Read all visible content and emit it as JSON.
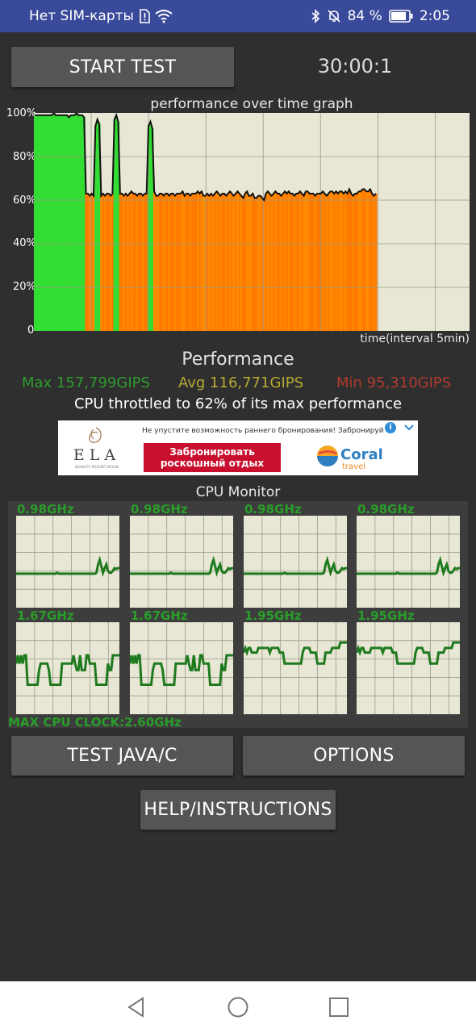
{
  "status_bar": {
    "carrier": "Нет SIM-карты",
    "battery_percent": "84 %",
    "time": "2:05",
    "icons": [
      "sim-alert-icon",
      "wifi-icon",
      "bluetooth-icon",
      "mute-icon",
      "battery-icon"
    ]
  },
  "controls": {
    "start_label": "START TEST",
    "timer": "30:00:1",
    "test_java_label": "TEST JAVA/C",
    "options_label": "OPTIONS",
    "help_label": "HELP/INSTRUCTIONS"
  },
  "chart_data": {
    "type": "line",
    "title": "performance over time graph",
    "xlabel": "time(interval 5min)",
    "ylabel": "",
    "ylim": [
      0,
      100
    ],
    "y_ticks": [
      "100%",
      "80%",
      "60%",
      "40%",
      "20%",
      "0"
    ],
    "grid": true,
    "series": [
      {
        "values": [
          99,
          99,
          99,
          99,
          99,
          99,
          99,
          99,
          99,
          99,
          100,
          99,
          99,
          99,
          99,
          99,
          99,
          99,
          98,
          99,
          99,
          99,
          100,
          99,
          99,
          99,
          98,
          63,
          63,
          62,
          63,
          62,
          94,
          97,
          95,
          62,
          63,
          62,
          63,
          63,
          62,
          63,
          97,
          99,
          96,
          63,
          63,
          62,
          63,
          62,
          63,
          64,
          63,
          63,
          62,
          63,
          63,
          62,
          63,
          63,
          94,
          96,
          93,
          64,
          62,
          62,
          63,
          63,
          62,
          63,
          63,
          62,
          63,
          63,
          62,
          63,
          63,
          63,
          64,
          62,
          63,
          63,
          62,
          63,
          63,
          63,
          64,
          63,
          64,
          62,
          62,
          63,
          62,
          63,
          62,
          63,
          64,
          63,
          62,
          63,
          63,
          62,
          63,
          64,
          63,
          62,
          63,
          64,
          63,
          62,
          61,
          63,
          64,
          62,
          62,
          63,
          61,
          61,
          62,
          62,
          61,
          60,
          63,
          64,
          63,
          62,
          63,
          64,
          63,
          63,
          62,
          63,
          64,
          63,
          64,
          63,
          63,
          62,
          63,
          63,
          64,
          63,
          62,
          64,
          64,
          63,
          63,
          63,
          62,
          63,
          63,
          63,
          64,
          63,
          62,
          63,
          64,
          64,
          63,
          64,
          63,
          64,
          64,
          63,
          64,
          63,
          65,
          63,
          62,
          63,
          63,
          64,
          64,
          65,
          65,
          64,
          64,
          65,
          63,
          62,
          63
        ]
      }
    ]
  },
  "performance": {
    "heading": "Performance",
    "max": "Max 157,799GIPS",
    "avg": "Avg 116,771GIPS",
    "min": "Min 95,310GIPS",
    "throttle_text": "CPU throttled to 62% of its max performance",
    "colors": {
      "max": "#2e9b2e",
      "avg": "#b8a832",
      "min": "#b03a2e"
    }
  },
  "ad": {
    "brand_left": "ELA",
    "brand_left_sub": "QUALITY RESORT BELEK",
    "headline": "Не упустите возможность раннего бронирования! Забронируйте",
    "cta_line1": "Забронировать",
    "cta_line2": "роскошный отдых",
    "brand_right": "Coral",
    "brand_right_sub": "travel"
  },
  "cpu_monitor": {
    "title": "CPU Monitor",
    "max_clock": "MAX CPU CLOCK:2.60GHz",
    "cores": [
      {
        "freq": "0.98GHz",
        "values": [
          0.37,
          0.37,
          0.37,
          0.37,
          0.37,
          0.37,
          0.37,
          0.37,
          0.37,
          0.37,
          0.37,
          0.37,
          0.37,
          0.37,
          0.37,
          0.37,
          0.37,
          0.37,
          0.37,
          0.37,
          0.37,
          0.37,
          0.37,
          0.37,
          0.37,
          0.38,
          0.37,
          0.37,
          0.37,
          0.37,
          0.37,
          0.37,
          0.37,
          0.37,
          0.37,
          0.37,
          0.37,
          0.37,
          0.37,
          0.37,
          0.37,
          0.37,
          0.37,
          0.37,
          0.37,
          0.37,
          0.37,
          0.37,
          0.37,
          0.38,
          0.47,
          0.52,
          0.45,
          0.38,
          0.43,
          0.47,
          0.4,
          0.38,
          0.38,
          0.4,
          0.43,
          0.42,
          0.43,
          0.43
        ]
      },
      {
        "freq": "0.98GHz",
        "values": [
          0.37,
          0.37,
          0.37,
          0.37,
          0.37,
          0.37,
          0.37,
          0.37,
          0.37,
          0.37,
          0.37,
          0.37,
          0.37,
          0.37,
          0.37,
          0.37,
          0.37,
          0.37,
          0.37,
          0.37,
          0.37,
          0.37,
          0.37,
          0.37,
          0.37,
          0.38,
          0.37,
          0.37,
          0.37,
          0.37,
          0.37,
          0.37,
          0.37,
          0.37,
          0.37,
          0.37,
          0.37,
          0.37,
          0.37,
          0.37,
          0.37,
          0.37,
          0.37,
          0.37,
          0.37,
          0.37,
          0.37,
          0.37,
          0.37,
          0.38,
          0.47,
          0.52,
          0.45,
          0.38,
          0.43,
          0.47,
          0.4,
          0.38,
          0.38,
          0.4,
          0.43,
          0.42,
          0.43,
          0.43
        ]
      },
      {
        "freq": "0.98GHz",
        "values": [
          0.37,
          0.37,
          0.37,
          0.37,
          0.37,
          0.37,
          0.37,
          0.37,
          0.37,
          0.37,
          0.37,
          0.37,
          0.37,
          0.37,
          0.37,
          0.37,
          0.37,
          0.37,
          0.37,
          0.37,
          0.37,
          0.37,
          0.37,
          0.37,
          0.37,
          0.38,
          0.37,
          0.37,
          0.37,
          0.37,
          0.37,
          0.37,
          0.37,
          0.37,
          0.37,
          0.37,
          0.37,
          0.37,
          0.37,
          0.37,
          0.37,
          0.37,
          0.37,
          0.37,
          0.37,
          0.37,
          0.37,
          0.37,
          0.37,
          0.38,
          0.47,
          0.52,
          0.45,
          0.38,
          0.43,
          0.47,
          0.4,
          0.38,
          0.38,
          0.4,
          0.43,
          0.42,
          0.43,
          0.43
        ]
      },
      {
        "freq": "0.98GHz",
        "values": [
          0.37,
          0.37,
          0.37,
          0.37,
          0.37,
          0.37,
          0.37,
          0.37,
          0.37,
          0.37,
          0.37,
          0.37,
          0.37,
          0.37,
          0.37,
          0.37,
          0.37,
          0.37,
          0.37,
          0.37,
          0.37,
          0.37,
          0.37,
          0.37,
          0.37,
          0.38,
          0.37,
          0.37,
          0.37,
          0.37,
          0.37,
          0.37,
          0.37,
          0.37,
          0.37,
          0.37,
          0.37,
          0.37,
          0.37,
          0.37,
          0.37,
          0.37,
          0.37,
          0.37,
          0.37,
          0.37,
          0.37,
          0.37,
          0.37,
          0.38,
          0.47,
          0.52,
          0.45,
          0.38,
          0.43,
          0.47,
          0.4,
          0.38,
          0.38,
          0.4,
          0.43,
          0.42,
          0.43,
          0.43
        ]
      },
      {
        "freq": "1.67GHz",
        "values": [
          0.55,
          0.64,
          0.55,
          0.64,
          0.55,
          0.64,
          0.64,
          0.32,
          0.32,
          0.32,
          0.32,
          0.32,
          0.32,
          0.32,
          0.48,
          0.55,
          0.55,
          0.55,
          0.55,
          0.55,
          0.48,
          0.32,
          0.32,
          0.32,
          0.32,
          0.32,
          0.32,
          0.32,
          0.55,
          0.55,
          0.55,
          0.55,
          0.55,
          0.55,
          0.55,
          0.64,
          0.55,
          0.48,
          0.48,
          0.64,
          0.48,
          0.48,
          0.48,
          0.64,
          0.64,
          0.55,
          0.55,
          0.55,
          0.55,
          0.32,
          0.32,
          0.32,
          0.32,
          0.32,
          0.32,
          0.32,
          0.55,
          0.48,
          0.48,
          0.64,
          0.64,
          0.64,
          0.64,
          0.64
        ]
      },
      {
        "freq": "1.67GHz",
        "values": [
          0.55,
          0.64,
          0.55,
          0.64,
          0.55,
          0.64,
          0.64,
          0.32,
          0.32,
          0.32,
          0.32,
          0.32,
          0.32,
          0.32,
          0.48,
          0.55,
          0.55,
          0.55,
          0.55,
          0.55,
          0.48,
          0.32,
          0.32,
          0.32,
          0.32,
          0.32,
          0.32,
          0.32,
          0.55,
          0.55,
          0.55,
          0.55,
          0.55,
          0.55,
          0.55,
          0.64,
          0.55,
          0.48,
          0.48,
          0.64,
          0.48,
          0.48,
          0.48,
          0.64,
          0.64,
          0.55,
          0.55,
          0.55,
          0.55,
          0.32,
          0.32,
          0.32,
          0.32,
          0.32,
          0.32,
          0.32,
          0.55,
          0.48,
          0.48,
          0.64,
          0.64,
          0.64,
          0.64,
          0.64
        ]
      },
      {
        "freq": "1.95GHz",
        "values": [
          0.67,
          0.72,
          0.67,
          0.72,
          0.72,
          0.67,
          0.67,
          0.67,
          0.67,
          0.72,
          0.72,
          0.72,
          0.72,
          0.72,
          0.72,
          0.72,
          0.67,
          0.72,
          0.72,
          0.72,
          0.72,
          0.72,
          0.67,
          0.67,
          0.67,
          0.55,
          0.55,
          0.55,
          0.55,
          0.55,
          0.55,
          0.55,
          0.55,
          0.55,
          0.55,
          0.55,
          0.67,
          0.72,
          0.72,
          0.72,
          0.72,
          0.67,
          0.67,
          0.67,
          0.67,
          0.55,
          0.55,
          0.55,
          0.55,
          0.55,
          0.67,
          0.67,
          0.67,
          0.67,
          0.72,
          0.72,
          0.72,
          0.72,
          0.72,
          0.78,
          0.78,
          0.78,
          0.78,
          0.78
        ]
      },
      {
        "freq": "1.95GHz",
        "values": [
          0.67,
          0.72,
          0.67,
          0.72,
          0.72,
          0.67,
          0.67,
          0.67,
          0.67,
          0.72,
          0.72,
          0.72,
          0.72,
          0.72,
          0.72,
          0.72,
          0.67,
          0.72,
          0.72,
          0.72,
          0.72,
          0.72,
          0.67,
          0.67,
          0.67,
          0.55,
          0.55,
          0.55,
          0.55,
          0.55,
          0.55,
          0.55,
          0.55,
          0.55,
          0.55,
          0.55,
          0.67,
          0.72,
          0.72,
          0.72,
          0.72,
          0.67,
          0.67,
          0.67,
          0.67,
          0.55,
          0.55,
          0.55,
          0.55,
          0.55,
          0.67,
          0.67,
          0.67,
          0.67,
          0.72,
          0.72,
          0.72,
          0.72,
          0.72,
          0.78,
          0.78,
          0.78,
          0.78,
          0.78
        ]
      }
    ]
  },
  "nav_bar": {
    "icons": [
      "back-icon",
      "home-icon",
      "recents-icon"
    ]
  }
}
